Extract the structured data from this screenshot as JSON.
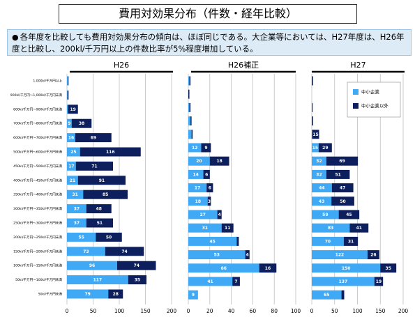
{
  "header": {
    "title": "費用対効果分布（件数・経年比較）",
    "bullet_marker": "●",
    "summary": "各年度を比較しても費用対効果分布の傾向は、ほぼ同じである。大企業等においては、H27年度は、H26年度と比較し、200kl/千万円以上の件数比率が5%程度増加している。"
  },
  "chart_data": [
    {
      "type": "bar",
      "orientation": "horizontal",
      "stacked": true,
      "title": "H26",
      "categories": [
        "1,000kl/千万円以上",
        "900kl/千万円～1,000kl/千万円未満",
        "800kl/千万円～900kl/千万円未満",
        "700kl/千万円～800kl/千万円未満",
        "600kl/千万円～700kl/千万円未満",
        "500kl/千万円～600kl/千万円未満",
        "450kl/千万円～500kl/千万円未満",
        "400kl/千万円～450kl/千万円未満",
        "350kl/千万円～400kl/千万円未満",
        "300kl/千万円～350kl/千万円未満",
        "250kl/千万円～300kl/千万円未満",
        "200kl/千万円～250kl/千万円未満",
        "150kl/千万円～200kl/千万円未満",
        "100kl/千万円～150kl/千万円未満",
        "50kl/千万円～100kl/千万円未満",
        "50kl/千万円未満"
      ],
      "series": [
        {
          "name": "中小企業",
          "values": [
            2,
            1,
            2,
            9,
            16,
            25,
            17,
            21,
            31,
            37,
            37,
            55,
            73,
            96,
            117,
            79
          ],
          "labels": [
            "",
            "",
            "",
            "9",
            "16",
            "25",
            "17",
            "21",
            "31",
            "37",
            "37",
            "55",
            "73",
            "96",
            "117",
            "79"
          ]
        },
        {
          "name": "中小企業以外",
          "values": [
            1,
            2,
            19,
            38,
            69,
            116,
            71,
            91,
            85,
            48,
            51,
            50,
            74,
            74,
            35,
            28
          ],
          "labels": [
            "",
            "",
            "19",
            "38",
            "69",
            "116",
            "71",
            "91",
            "85",
            "48",
            "51",
            "50",
            "74",
            "74",
            "35",
            "28"
          ]
        }
      ],
      "xlim": [
        0,
        200
      ],
      "xticks": [
        0,
        50,
        100,
        150,
        200
      ],
      "grid": true
    },
    {
      "type": "bar",
      "orientation": "horizontal",
      "stacked": true,
      "title": "H26補正",
      "series": [
        {
          "name": "中小企業",
          "values": [
            1,
            0,
            1,
            2,
            3,
            12,
            20,
            14,
            17,
            18,
            27,
            31,
            45,
            53,
            66,
            41,
            9
          ],
          "labels": [
            "",
            "",
            "",
            "",
            "",
            "12",
            "20",
            "14",
            "17",
            "18",
            "27",
            "31",
            "45",
            "53",
            "66",
            "41",
            "9"
          ]
        },
        {
          "name": "中小企業以外",
          "values": [
            1,
            1,
            1,
            1,
            1,
            9,
            18,
            6,
            6,
            3,
            4,
            11,
            2,
            4,
            16,
            7,
            0
          ],
          "labels": [
            "",
            "",
            "",
            "",
            "",
            "9",
            "18",
            "6",
            "6",
            "3",
            "4",
            "11",
            "",
            "4",
            "16",
            "7",
            ""
          ]
        }
      ],
      "xlim": [
        0,
        100
      ],
      "xticks": [
        0,
        20,
        40,
        60,
        80,
        100
      ],
      "grid": true
    },
    {
      "type": "bar",
      "orientation": "horizontal",
      "stacked": true,
      "title": "H27",
      "series": [
        {
          "name": "中小企業",
          "values": [
            1,
            0,
            1,
            1,
            1,
            15,
            32,
            32,
            44,
            43,
            59,
            83,
            70,
            122,
            150,
            137,
            65
          ],
          "labels": [
            "",
            "",
            "",
            "",
            "",
            "15",
            "32",
            "32",
            "44",
            "43",
            "59",
            "83",
            "70",
            "122",
            "150",
            "137",
            "65"
          ]
        },
        {
          "name": "中小企業以外",
          "values": [
            2,
            0,
            1,
            2,
            15,
            29,
            69,
            51,
            47,
            50,
            45,
            41,
            31,
            26,
            35,
            19,
            6
          ],
          "labels": [
            "",
            "",
            "",
            "",
            "15",
            "29",
            "69",
            "51",
            "47",
            "50",
            "45",
            "41",
            "31",
            "26",
            "35",
            "19",
            ""
          ]
        }
      ],
      "xlim": [
        0,
        200
      ],
      "xticks": [
        0,
        50,
        100,
        150,
        200
      ],
      "grid": true,
      "legend": {
        "position": "top-right",
        "entries": [
          "中小企業",
          "中小企業以外"
        ]
      }
    }
  ],
  "colors": {
    "sme": "#3fa9f5",
    "non_sme": "#0d1f5c",
    "grid": "#bfbfbf",
    "header_line": "#000000"
  }
}
